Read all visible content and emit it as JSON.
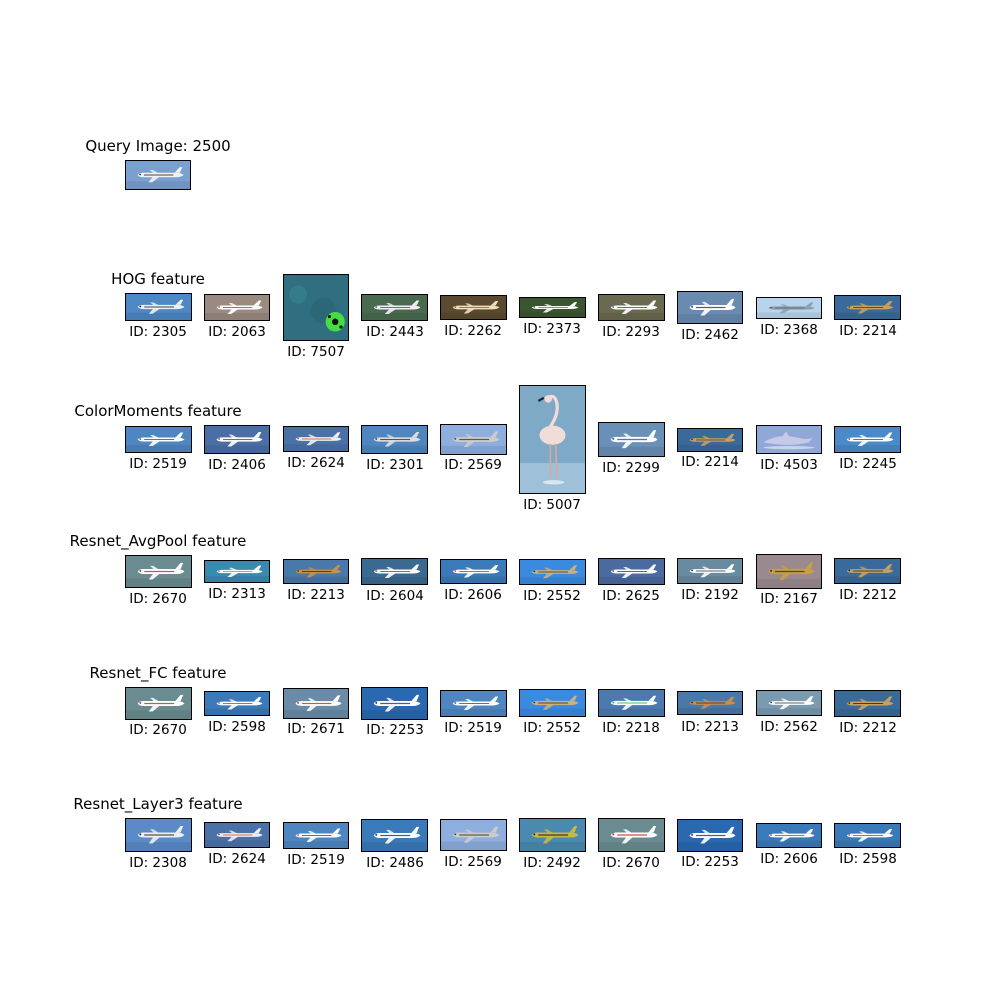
{
  "query": {
    "title": "Query Image: 2500",
    "image": {
      "kind": "plane",
      "bg": "#7aa0d0",
      "body": "#f2f2f2",
      "accent": "#333333"
    }
  },
  "rows": [
    {
      "title": "HOG feature",
      "items": [
        {
          "id": "ID: 2305",
          "kind": "plane",
          "bg": "#4d87c4",
          "body": "#eeeeee",
          "accent": "#222222"
        },
        {
          "id": "ID: 2063",
          "kind": "plane",
          "bg": "#9a8a80",
          "body": "#ffffff",
          "accent": "#cc3333"
        },
        {
          "id": "ID: 7507",
          "kind": "ball",
          "bg": "#2f6f7f",
          "body": "#44dd44",
          "accent": "#111111"
        },
        {
          "id": "ID: 2443",
          "kind": "plane",
          "bg": "#4a6a50",
          "body": "#f0f0f0",
          "accent": "#2255aa"
        },
        {
          "id": "ID: 2262",
          "kind": "plane",
          "bg": "#5b4a30",
          "body": "#f0e0c0",
          "accent": "#cc3311"
        },
        {
          "id": "ID: 2373",
          "kind": "plane",
          "bg": "#3a5530",
          "body": "#ffffff",
          "accent": "#444444"
        },
        {
          "id": "ID: 2293",
          "kind": "plane",
          "bg": "#6a6a50",
          "body": "#ffffff",
          "accent": "#2255aa"
        },
        {
          "id": "ID: 2462",
          "kind": "plane",
          "bg": "#6a8ab0",
          "body": "#ffffff",
          "accent": "#333333"
        },
        {
          "id": "ID: 2368",
          "kind": "plane",
          "bg": "#b8d4ec",
          "body": "#8aa0b0",
          "accent": "#555555"
        },
        {
          "id": "ID: 2214",
          "kind": "plane",
          "bg": "#3a6a9a",
          "body": "#c8a060",
          "accent": "#333333"
        }
      ]
    },
    {
      "title": "ColorMoments feature",
      "items": [
        {
          "id": "ID: 2519",
          "kind": "plane",
          "bg": "#4e86c2",
          "body": "#ffffff",
          "accent": "#aa2222"
        },
        {
          "id": "ID: 2406",
          "kind": "plane",
          "bg": "#4a6fa6",
          "body": "#ffffff",
          "accent": "#aa2222"
        },
        {
          "id": "ID: 2624",
          "kind": "plane",
          "bg": "#4a72a8",
          "body": "#f0f0f0",
          "accent": "#cc4422"
        },
        {
          "id": "ID: 2301",
          "kind": "plane",
          "bg": "#4f86c0",
          "body": "#dddddd",
          "accent": "#333333"
        },
        {
          "id": "ID: 2569",
          "kind": "plane",
          "bg": "#8eaede",
          "body": "#cccccc",
          "accent": "#334422"
        },
        {
          "id": "ID: 5007",
          "kind": "flamingo",
          "bg": "#7eaac8",
          "body": "#f2dcd8",
          "accent": "#222222"
        },
        {
          "id": "ID: 2299",
          "kind": "plane",
          "bg": "#6a90b8",
          "body": "#ffffff",
          "accent": "#2255aa"
        },
        {
          "id": "ID: 2214",
          "kind": "plane",
          "bg": "#3a6a9a",
          "body": "#c8a060",
          "accent": "#333333"
        },
        {
          "id": "ID: 4503",
          "kind": "dolphin",
          "bg": "#8fa8d8",
          "body": "#c8c8e8",
          "accent": "#ffffff"
        },
        {
          "id": "ID: 2245",
          "kind": "plane",
          "bg": "#4a8ac8",
          "body": "#ffffff",
          "accent": "#2255aa"
        }
      ]
    },
    {
      "title": "Resnet_AvgPool feature",
      "items": [
        {
          "id": "ID: 2670",
          "kind": "plane",
          "bg": "#6a8c90",
          "body": "#ffffff",
          "accent": "#cc2222"
        },
        {
          "id": "ID: 2313",
          "kind": "plane",
          "bg": "#3a8ab0",
          "body": "#ffffff",
          "accent": "#22aa88"
        },
        {
          "id": "ID: 2213",
          "kind": "plane",
          "bg": "#4a78a8",
          "body": "#c89050",
          "accent": "#222222"
        },
        {
          "id": "ID: 2604",
          "kind": "plane",
          "bg": "#3a6a90",
          "body": "#ffffff",
          "accent": "#cc2222"
        },
        {
          "id": "ID: 2606",
          "kind": "plane",
          "bg": "#3a7ab8",
          "body": "#ffffff",
          "accent": "#cc2222"
        },
        {
          "id": "ID: 2552",
          "kind": "plane",
          "bg": "#3a8ae0",
          "body": "#c8b080",
          "accent": "#333333"
        },
        {
          "id": "ID: 2625",
          "kind": "plane",
          "bg": "#4a6aa0",
          "body": "#ffffff",
          "accent": "#2244aa"
        },
        {
          "id": "ID: 2192",
          "kind": "plane",
          "bg": "#6a8aa0",
          "body": "#ffffff",
          "accent": "#333333"
        },
        {
          "id": "ID: 2167",
          "kind": "plane",
          "bg": "#9a8a90",
          "body": "#c8a040",
          "accent": "#333333"
        },
        {
          "id": "ID: 2212",
          "kind": "plane",
          "bg": "#3a6a9a",
          "body": "#c8a060",
          "accent": "#222222"
        }
      ]
    },
    {
      "title": "Resnet_FC feature",
      "items": [
        {
          "id": "ID: 2670",
          "kind": "plane",
          "bg": "#6a8c90",
          "body": "#ffffff",
          "accent": "#cc2222"
        },
        {
          "id": "ID: 2598",
          "kind": "plane",
          "bg": "#3a7ab8",
          "body": "#ffffff",
          "accent": "#cc2222"
        },
        {
          "id": "ID: 2671",
          "kind": "plane",
          "bg": "#6a8ca8",
          "body": "#ffffff",
          "accent": "#cc2222"
        },
        {
          "id": "ID: 2253",
          "kind": "plane",
          "bg": "#2a68b0",
          "body": "#ffffff",
          "accent": "#333333"
        },
        {
          "id": "ID: 2519",
          "kind": "plane",
          "bg": "#4e86c2",
          "body": "#ffffff",
          "accent": "#aa2222"
        },
        {
          "id": "ID: 2552",
          "kind": "plane",
          "bg": "#3a8ae0",
          "body": "#c8b080",
          "accent": "#333333"
        },
        {
          "id": "ID: 2218",
          "kind": "plane",
          "bg": "#4a7ab0",
          "body": "#ffffff",
          "accent": "#22aa66"
        },
        {
          "id": "ID: 2213",
          "kind": "plane",
          "bg": "#4a78a8",
          "body": "#c89050",
          "accent": "#222222"
        },
        {
          "id": "ID: 2562",
          "kind": "plane",
          "bg": "#7a9ab0",
          "body": "#ffffff",
          "accent": "#333333"
        },
        {
          "id": "ID: 2212",
          "kind": "plane",
          "bg": "#3a6a9a",
          "body": "#c8a060",
          "accent": "#222222"
        }
      ]
    },
    {
      "title": "Resnet_Layer3 feature",
      "items": [
        {
          "id": "ID: 2308",
          "kind": "plane",
          "bg": "#5a8ac8",
          "body": "#eeeeee",
          "accent": "#333333"
        },
        {
          "id": "ID: 2624",
          "kind": "plane",
          "bg": "#4a72a8",
          "body": "#f0f0f0",
          "accent": "#cc4422"
        },
        {
          "id": "ID: 2519",
          "kind": "plane",
          "bg": "#4e86c2",
          "body": "#ffffff",
          "accent": "#aa2222"
        },
        {
          "id": "ID: 2486",
          "kind": "plane",
          "bg": "#3a7ab8",
          "body": "#ffffff",
          "accent": "#333333"
        },
        {
          "id": "ID: 2569",
          "kind": "plane",
          "bg": "#8eaede",
          "body": "#cccccc",
          "accent": "#334422"
        },
        {
          "id": "ID: 2492",
          "kind": "plane",
          "bg": "#4a8ab0",
          "body": "#c8b840",
          "accent": "#222222"
        },
        {
          "id": "ID: 2670",
          "kind": "plane",
          "bg": "#6a8c90",
          "body": "#ffffff",
          "accent": "#cc2222"
        },
        {
          "id": "ID: 2253",
          "kind": "plane",
          "bg": "#2a68b0",
          "body": "#ffffff",
          "accent": "#333333"
        },
        {
          "id": "ID: 2606",
          "kind": "plane",
          "bg": "#3a7ab8",
          "body": "#ffffff",
          "accent": "#cc2222"
        },
        {
          "id": "ID: 2598",
          "kind": "plane",
          "bg": "#3a7ab8",
          "body": "#ffffff",
          "accent": "#cc2222"
        }
      ]
    }
  ]
}
